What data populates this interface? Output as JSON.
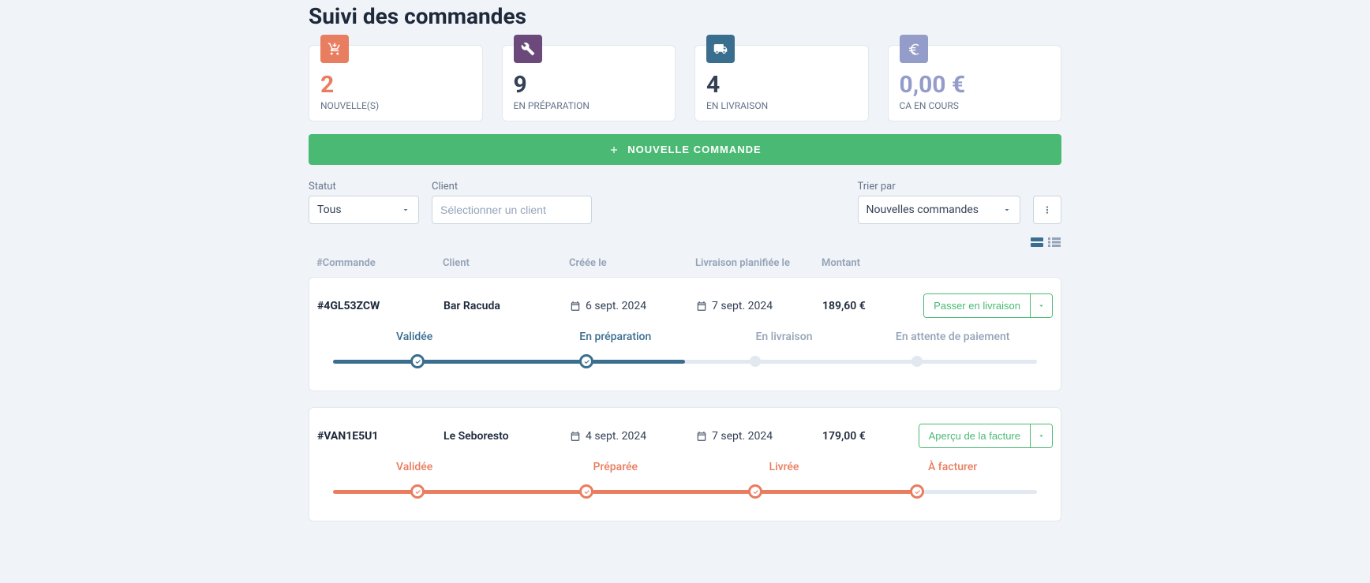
{
  "page": {
    "title": "Suivi des commandes"
  },
  "colors": {
    "stat1_icon_bg": "#e97d5f",
    "stat1_value": "#e97d5f",
    "stat2_icon_bg": "#6b4a7b",
    "stat2_value": "#334155",
    "stat3_icon_bg": "#3a6e8f",
    "stat3_value": "#334155",
    "stat4_icon_bg": "#949cc9",
    "stat4_value": "#949cc9",
    "accent_green": "#4ab973",
    "progress_blue": "#3a6e8f",
    "progress_orange": "#e97d5f",
    "progress_inactive": "#cbd5e1",
    "text_muted": "#94a3b8"
  },
  "stats": [
    {
      "value": "2",
      "label": "NOUVELLE(S)",
      "icon": "cart"
    },
    {
      "value": "9",
      "label": "EN PRÉPARATION",
      "icon": "tools"
    },
    {
      "value": "4",
      "label": "EN LIVRAISON",
      "icon": "truck"
    },
    {
      "value": "0,00 €",
      "label": "CA EN COURS",
      "icon": "euro"
    }
  ],
  "new_order_button": "NOUVELLE COMMANDE",
  "filters": {
    "status_label": "Statut",
    "status_value": "Tous",
    "client_label": "Client",
    "client_placeholder": "Sélectionner un client",
    "sort_label": "Trier par",
    "sort_value": "Nouvelles commandes"
  },
  "table": {
    "headers": {
      "id": "#Commande",
      "client": "Client",
      "created": "Créée le",
      "delivery": "Livraison planifiée le",
      "amount": "Montant"
    }
  },
  "orders": [
    {
      "id": "#4GL53ZCW",
      "client": "Bar Racuda",
      "created": "6 sept. 2024",
      "delivery": "7 sept. 2024",
      "amount": "189,60 €",
      "action": "Passer en livraison",
      "progress_color": "#3a6e8f",
      "progress_percent": 50,
      "steps": [
        {
          "label": "Validée",
          "active": true
        },
        {
          "label": "En préparation",
          "active": true
        },
        {
          "label": "En livraison",
          "active": false
        },
        {
          "label": "En attente de paiement",
          "active": false
        }
      ]
    },
    {
      "id": "#VAN1E5U1",
      "client": "Le Seboresto",
      "created": "4 sept. 2024",
      "delivery": "7 sept. 2024",
      "amount": "179,00 €",
      "action": "Aperçu de la facture",
      "progress_color": "#e97d5f",
      "progress_percent": 83,
      "steps": [
        {
          "label": "Validée",
          "active": true
        },
        {
          "label": "Préparée",
          "active": true
        },
        {
          "label": "Livrée",
          "active": true
        },
        {
          "label": "À facturer",
          "active": true
        }
      ]
    }
  ]
}
